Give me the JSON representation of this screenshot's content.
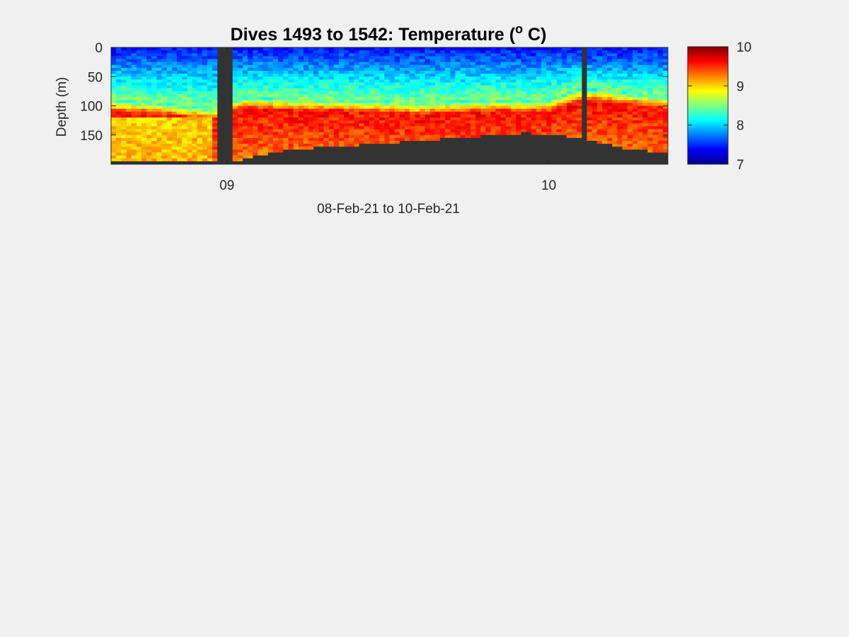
{
  "chart_data": {
    "type": "heatmap",
    "title_parts": [
      "Dives 1493 to 1542: Temperature (",
      "o",
      " C)"
    ],
    "xlabel": "08-Feb-21 to 10-Feb-21",
    "ylabel": "Depth (m)",
    "x_tick_labels": [
      "09",
      "10"
    ],
    "x_ticks_day": [
      1.0,
      2.0
    ],
    "x_range_day": [
      0.64,
      2.37
    ],
    "y_ticks": [
      0,
      50,
      100,
      150
    ],
    "y_tick_labels": [
      "0",
      "50",
      "100",
      "150"
    ],
    "ylim": [
      0,
      200
    ],
    "y_reversed": true,
    "colorbar": {
      "colormap": "jet",
      "clim": [
        7,
        10
      ],
      "ticks": [
        7,
        8,
        9,
        10
      ],
      "tick_labels": [
        "7",
        "8",
        "9",
        "10"
      ]
    },
    "no_data_color": "#333333",
    "data_gaps_day": [
      [
        0.97,
        1.02
      ],
      [
        2.096,
        2.112
      ]
    ],
    "seabed_depth_profile": {
      "day": [
        0.64,
        0.8,
        0.96,
        1.02,
        1.1,
        1.2,
        1.4,
        1.6,
        1.8,
        1.93,
        2.05,
        2.15,
        2.25,
        2.37
      ],
      "depth": [
        196,
        197,
        197,
        197,
        185,
        175,
        168,
        160,
        152,
        147,
        152,
        162,
        175,
        180
      ]
    },
    "thermocline_depth_profile": {
      "day": [
        0.64,
        0.8,
        0.95,
        1.05,
        1.2,
        1.4,
        1.6,
        1.8,
        2.0,
        2.1,
        2.2,
        2.37
      ],
      "depth": [
        100,
        105,
        115,
        95,
        98,
        100,
        105,
        100,
        100,
        80,
        85,
        95
      ]
    },
    "surface_temperature_C": 7.4,
    "mid_layer_temperature_C": 8.2,
    "deep_temperature_C": 9.6,
    "bottom_temperature_C": 9.3
  }
}
